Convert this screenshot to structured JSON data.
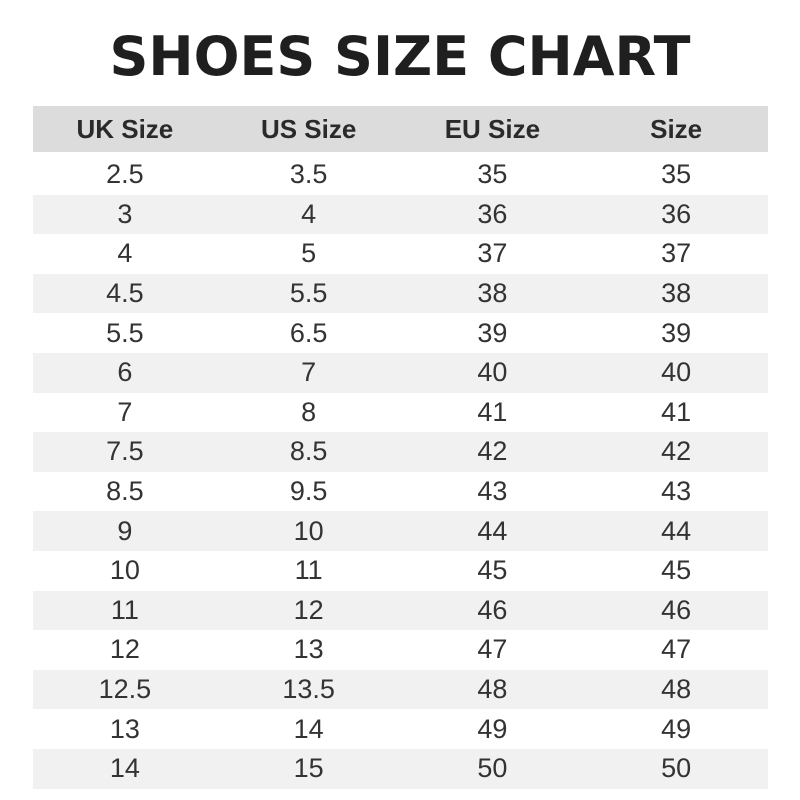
{
  "title": "SHOES SIZE CHART",
  "table": {
    "headers": [
      "UK Size",
      "US Size",
      "EU Size",
      "Size"
    ],
    "rows": [
      [
        "2.5",
        "3.5",
        "35",
        "35"
      ],
      [
        "3",
        "4",
        "36",
        "36"
      ],
      [
        "4",
        "5",
        "37",
        "37"
      ],
      [
        "4.5",
        "5.5",
        "38",
        "38"
      ],
      [
        "5.5",
        "6.5",
        "39",
        "39"
      ],
      [
        "6",
        "7",
        "40",
        "40"
      ],
      [
        "7",
        "8",
        "41",
        "41"
      ],
      [
        "7.5",
        "8.5",
        "42",
        "42"
      ],
      [
        "8.5",
        "9.5",
        "43",
        "43"
      ],
      [
        "9",
        "10",
        "44",
        "44"
      ],
      [
        "10",
        "11",
        "45",
        "45"
      ],
      [
        "11",
        "12",
        "46",
        "46"
      ],
      [
        "12",
        "13",
        "47",
        "47"
      ],
      [
        "12.5",
        "13.5",
        "48",
        "48"
      ],
      [
        "13",
        "14",
        "49",
        "49"
      ],
      [
        "14",
        "15",
        "50",
        "50"
      ]
    ]
  },
  "colors": {
    "header_bg": "#dcdcdc",
    "stripe_bg": "#f1f1f1",
    "title": "#1f1f1f"
  }
}
